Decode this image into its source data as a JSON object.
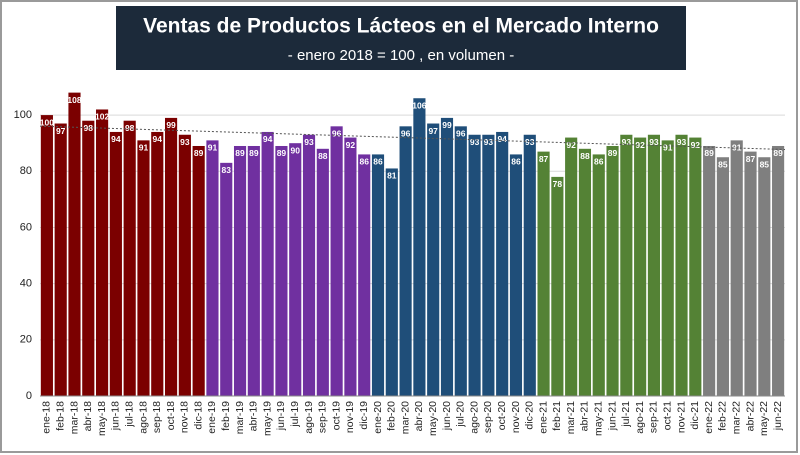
{
  "chart_data": {
    "type": "bar",
    "title": "Ventas de Productos Lácteos en el Mercado Interno",
    "subtitle": "- enero 2018 = 100 , en volumen -",
    "categories": [
      "ene-18",
      "feb-18",
      "mar-18",
      "abr-18",
      "may-18",
      "jun-18",
      "jul-18",
      "ago-18",
      "sep-18",
      "oct-18",
      "nov-18",
      "dic-18",
      "ene-19",
      "feb-19",
      "mar-19",
      "abr-19",
      "may-19",
      "jun-19",
      "jul-19",
      "ago-19",
      "sep-19",
      "oct-19",
      "nov-19",
      "dic-19",
      "ene-20",
      "feb-20",
      "mar-20",
      "abr-20",
      "may-20",
      "jun-20",
      "jul-20",
      "ago-20",
      "sep-20",
      "oct-20",
      "nov-20",
      "dic-20",
      "ene-21",
      "feb-21",
      "mar-21",
      "abr-21",
      "may-21",
      "jun-21",
      "jul-21",
      "ago-21",
      "sep-21",
      "oct-21",
      "nov-21",
      "dic-21",
      "ene-22",
      "feb-22",
      "mar-22",
      "abr-22",
      "may-22",
      "jun-22"
    ],
    "values": [
      100,
      97,
      108,
      98,
      102,
      94,
      98,
      91,
      94,
      99,
      93,
      89,
      91,
      83,
      89,
      89,
      94,
      89,
      90,
      93,
      88,
      96,
      92,
      86,
      86,
      81,
      96,
      106,
      97,
      99,
      96,
      93,
      93,
      94,
      86,
      93,
      87,
      78,
      92,
      88,
      86,
      89,
      93,
      92,
      93,
      91,
      93,
      92,
      89,
      85,
      91,
      87,
      85,
      89
    ],
    "colors": [
      "#7b0000",
      "#7b0000",
      "#7b0000",
      "#7b0000",
      "#7b0000",
      "#7b0000",
      "#7b0000",
      "#7b0000",
      "#7b0000",
      "#7b0000",
      "#7b0000",
      "#7b0000",
      "#7030a0",
      "#7030a0",
      "#7030a0",
      "#7030a0",
      "#7030a0",
      "#7030a0",
      "#7030a0",
      "#7030a0",
      "#7030a0",
      "#7030a0",
      "#7030a0",
      "#7030a0",
      "#1f4e79",
      "#1f4e79",
      "#1f4e79",
      "#1f4e79",
      "#1f4e79",
      "#1f4e79",
      "#1f4e79",
      "#1f4e79",
      "#1f4e79",
      "#1f4e79",
      "#1f4e79",
      "#1f4e79",
      "#548235",
      "#548235",
      "#548235",
      "#548235",
      "#548235",
      "#548235",
      "#548235",
      "#548235",
      "#548235",
      "#548235",
      "#548235",
      "#548235",
      "#7f7f7f",
      "#7f7f7f",
      "#7f7f7f",
      "#7f7f7f",
      "#7f7f7f",
      "#7f7f7f"
    ],
    "ylim": [
      0,
      110
    ],
    "yticks": [
      0,
      20,
      40,
      60,
      80,
      100
    ],
    "grid": true,
    "trendline": true
  }
}
